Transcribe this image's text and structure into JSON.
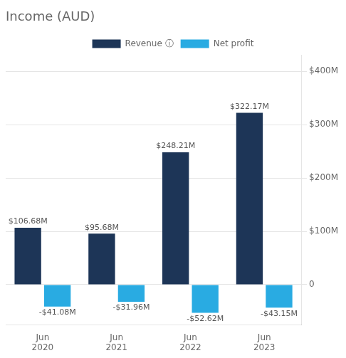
{
  "chart_data": {
    "type": "bar",
    "title": "Income (AUD)",
    "categories": [
      "Jun\n2020",
      "Jun\n2021",
      "Jun\n2022",
      "Jun\n2023"
    ],
    "series": [
      {
        "name": "Revenue ⓘ",
        "color": "#1d3557",
        "values": [
          106.68,
          95.68,
          248.21,
          322.17
        ],
        "value_labels": [
          "$106.68M",
          "$95.68M",
          "$248.21M",
          "$322.17M"
        ]
      },
      {
        "name": "Net profit",
        "color": "#29abe2",
        "values": [
          -41.08,
          -31.96,
          -52.62,
          -43.15
        ],
        "value_labels": [
          "-$41.08M",
          "-$31.96M",
          "-$52.62M",
          "-$43.15M"
        ]
      }
    ],
    "ylim": [
      -75,
      430
    ],
    "yticks": [
      0,
      {
        "value": 100,
        "label": "$100M"
      },
      {
        "value": 200,
        "label": "$200M"
      },
      {
        "value": 300,
        "label": "$300M"
      },
      {
        "value": 400,
        "label": "$400M"
      }
    ],
    "grid": true,
    "data_labels": true,
    "legend": "top"
  }
}
